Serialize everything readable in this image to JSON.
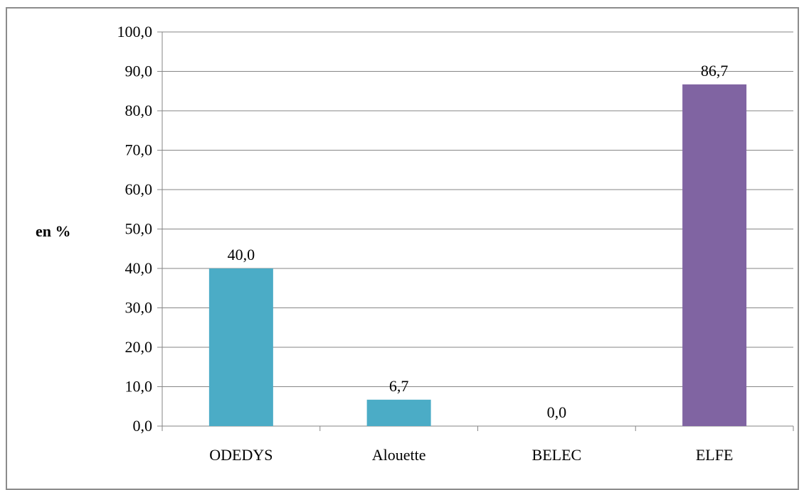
{
  "chart_data": {
    "type": "bar",
    "categories": [
      "ODEDYS",
      "Alouette",
      "BELEC",
      "ELFE"
    ],
    "values": [
      40.0,
      6.7,
      0.0,
      86.7
    ],
    "data_labels": [
      "40,0",
      "6,7",
      "0,0",
      "86,7"
    ],
    "bar_colors": [
      "#4bacc6",
      "#4bacc6",
      "#4bacc6",
      "#8064a2"
    ],
    "ylabel": "en %",
    "ylim": [
      0,
      100
    ],
    "yticks": [
      0,
      10,
      20,
      30,
      40,
      50,
      60,
      70,
      80,
      90,
      100
    ],
    "ytick_labels": [
      "0,0",
      "10,0",
      "20,0",
      "30,0",
      "40,0",
      "50,0",
      "60,0",
      "70,0",
      "80,0",
      "90,0",
      "100,0"
    ],
    "grid": true,
    "gridline_color": "#868686",
    "legend": "none"
  }
}
